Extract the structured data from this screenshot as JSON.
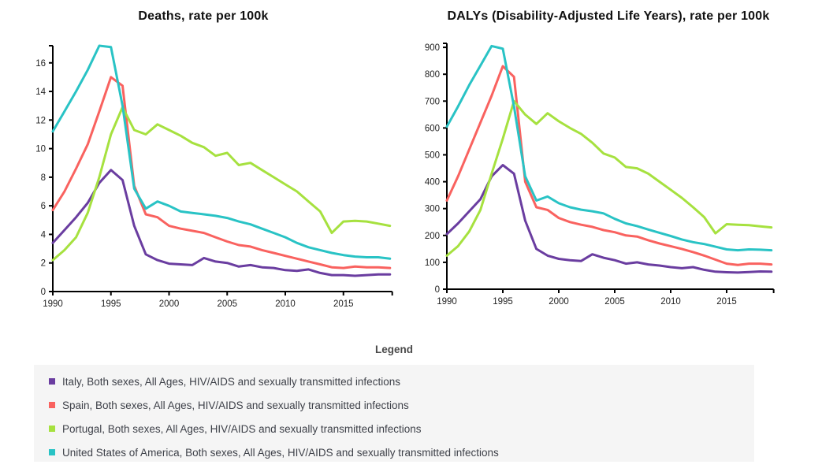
{
  "legend": {
    "title": "Legend",
    "items": [
      {
        "label": "Italy, Both sexes, All Ages, HIV/AIDS and sexually transmitted infections",
        "color": "#6a3da0"
      },
      {
        "label": "Spain, Both sexes, All Ages, HIV/AIDS and sexually transmitted infections",
        "color": "#f9625f"
      },
      {
        "label": "Portugal, Both sexes, All Ages, HIV/AIDS and sexually transmitted infections",
        "color": "#a6e13f"
      },
      {
        "label": "United States of America, Both sexes, All Ages, HIV/AIDS and sexually transmitted infections",
        "color": "#29c3c5"
      }
    ]
  },
  "chart_data": [
    {
      "type": "line",
      "title": "Deaths, rate per 100k",
      "xlabel": "",
      "ylabel": "",
      "x": [
        1990,
        1991,
        1992,
        1993,
        1994,
        1995,
        1996,
        1997,
        1998,
        1999,
        2000,
        2001,
        2002,
        2003,
        2004,
        2005,
        2006,
        2007,
        2008,
        2009,
        2010,
        2011,
        2012,
        2013,
        2014,
        2015,
        2016,
        2017,
        2018,
        2019
      ],
      "xlim": [
        1990,
        2019.2
      ],
      "ylim": [
        0,
        17.2
      ],
      "yticks": [
        0,
        2,
        4,
        6,
        8,
        10,
        12,
        14,
        16
      ],
      "xticks": [
        1990,
        1995,
        2000,
        2005,
        2010,
        2015
      ],
      "grid": false,
      "legend_position": "bottom",
      "series": [
        {
          "name": "Italy, Both sexes, All Ages, HIV/AIDS and sexually transmitted infections",
          "color": "#6a3da0",
          "values": [
            3.4,
            4.3,
            5.2,
            6.2,
            7.6,
            8.5,
            7.8,
            4.6,
            2.6,
            2.2,
            1.95,
            1.9,
            1.85,
            2.35,
            2.1,
            2.0,
            1.75,
            1.85,
            1.7,
            1.65,
            1.5,
            1.45,
            1.55,
            1.3,
            1.15,
            1.15,
            1.1,
            1.15,
            1.2,
            1.2
          ]
        },
        {
          "name": "Spain, Both sexes, All Ages, HIV/AIDS and sexually transmitted infections",
          "color": "#f9625f",
          "values": [
            5.7,
            7.0,
            8.6,
            10.3,
            12.6,
            15.0,
            14.4,
            7.4,
            5.4,
            5.2,
            4.6,
            4.4,
            4.25,
            4.1,
            3.8,
            3.5,
            3.25,
            3.15,
            2.9,
            2.7,
            2.5,
            2.3,
            2.1,
            1.9,
            1.7,
            1.65,
            1.75,
            1.7,
            1.7,
            1.65
          ]
        },
        {
          "name": "Portugal, Both sexes, All Ages, HIV/AIDS and sexually transmitted infections",
          "color": "#a6e13f",
          "values": [
            2.2,
            2.9,
            3.8,
            5.5,
            8.0,
            11.0,
            12.9,
            11.3,
            11.0,
            11.7,
            11.3,
            10.9,
            10.4,
            10.1,
            9.5,
            9.7,
            8.85,
            9.0,
            8.5,
            8.0,
            7.5,
            7.0,
            6.3,
            5.6,
            4.1,
            4.9,
            4.95,
            4.9,
            4.75,
            4.6
          ]
        },
        {
          "name": "United States of America, Both sexes, All Ages, HIV/AIDS and sexually transmitted infections",
          "color": "#29c3c5",
          "values": [
            11.2,
            12.6,
            14.0,
            15.5,
            17.2,
            17.1,
            13.0,
            7.2,
            5.8,
            6.3,
            6.0,
            5.6,
            5.5,
            5.4,
            5.3,
            5.15,
            4.9,
            4.7,
            4.4,
            4.1,
            3.8,
            3.4,
            3.1,
            2.9,
            2.7,
            2.55,
            2.45,
            2.4,
            2.4,
            2.3
          ]
        }
      ]
    },
    {
      "type": "line",
      "title": "DALYs (Disability-Adjusted Life Years), rate per 100k",
      "xlabel": "",
      "ylabel": "",
      "x": [
        1990,
        1991,
        1992,
        1993,
        1994,
        1995,
        1996,
        1997,
        1998,
        1999,
        2000,
        2001,
        2002,
        2003,
        2004,
        2005,
        2006,
        2007,
        2008,
        2009,
        2010,
        2011,
        2012,
        2013,
        2014,
        2015,
        2016,
        2017,
        2018,
        2019
      ],
      "xlim": [
        1990,
        2019.2
      ],
      "ylim": [
        0,
        915
      ],
      "yticks": [
        0,
        100,
        200,
        300,
        400,
        500,
        600,
        700,
        800,
        900
      ],
      "xticks": [
        1990,
        1995,
        2000,
        2005,
        2010,
        2015
      ],
      "grid": false,
      "legend_position": "bottom",
      "series": [
        {
          "name": "Italy, Both sexes, All Ages, HIV/AIDS and sexually transmitted infections",
          "color": "#6a3da0",
          "values": [
            205,
            245,
            290,
            335,
            420,
            462,
            430,
            255,
            150,
            125,
            113,
            108,
            105,
            130,
            117,
            108,
            95,
            100,
            92,
            88,
            82,
            78,
            82,
            72,
            65,
            63,
            62,
            64,
            66,
            65
          ]
        },
        {
          "name": "Spain, Both sexes, All Ages, HIV/AIDS and sexually transmitted infections",
          "color": "#f9625f",
          "values": [
            330,
            420,
            520,
            620,
            720,
            830,
            790,
            400,
            305,
            295,
            265,
            250,
            240,
            232,
            220,
            212,
            200,
            196,
            182,
            170,
            160,
            150,
            138,
            125,
            110,
            95,
            90,
            95,
            95,
            92
          ]
        },
        {
          "name": "Portugal, Both sexes, All Ages, HIV/AIDS and sexually transmitted infections",
          "color": "#a6e13f",
          "values": [
            125,
            160,
            215,
            295,
            430,
            560,
            700,
            650,
            615,
            655,
            625,
            600,
            578,
            545,
            505,
            490,
            455,
            450,
            430,
            400,
            370,
            340,
            305,
            268,
            208,
            242,
            240,
            238,
            234,
            230
          ]
        },
        {
          "name": "United States of America, Both sexes, All Ages, HIV/AIDS and sexually transmitted infections",
          "color": "#29c3c5",
          "values": [
            605,
            680,
            760,
            832,
            905,
            895,
            680,
            420,
            330,
            345,
            320,
            305,
            296,
            290,
            282,
            262,
            245,
            235,
            222,
            210,
            198,
            185,
            175,
            168,
            158,
            148,
            145,
            148,
            147,
            145
          ]
        }
      ]
    }
  ]
}
